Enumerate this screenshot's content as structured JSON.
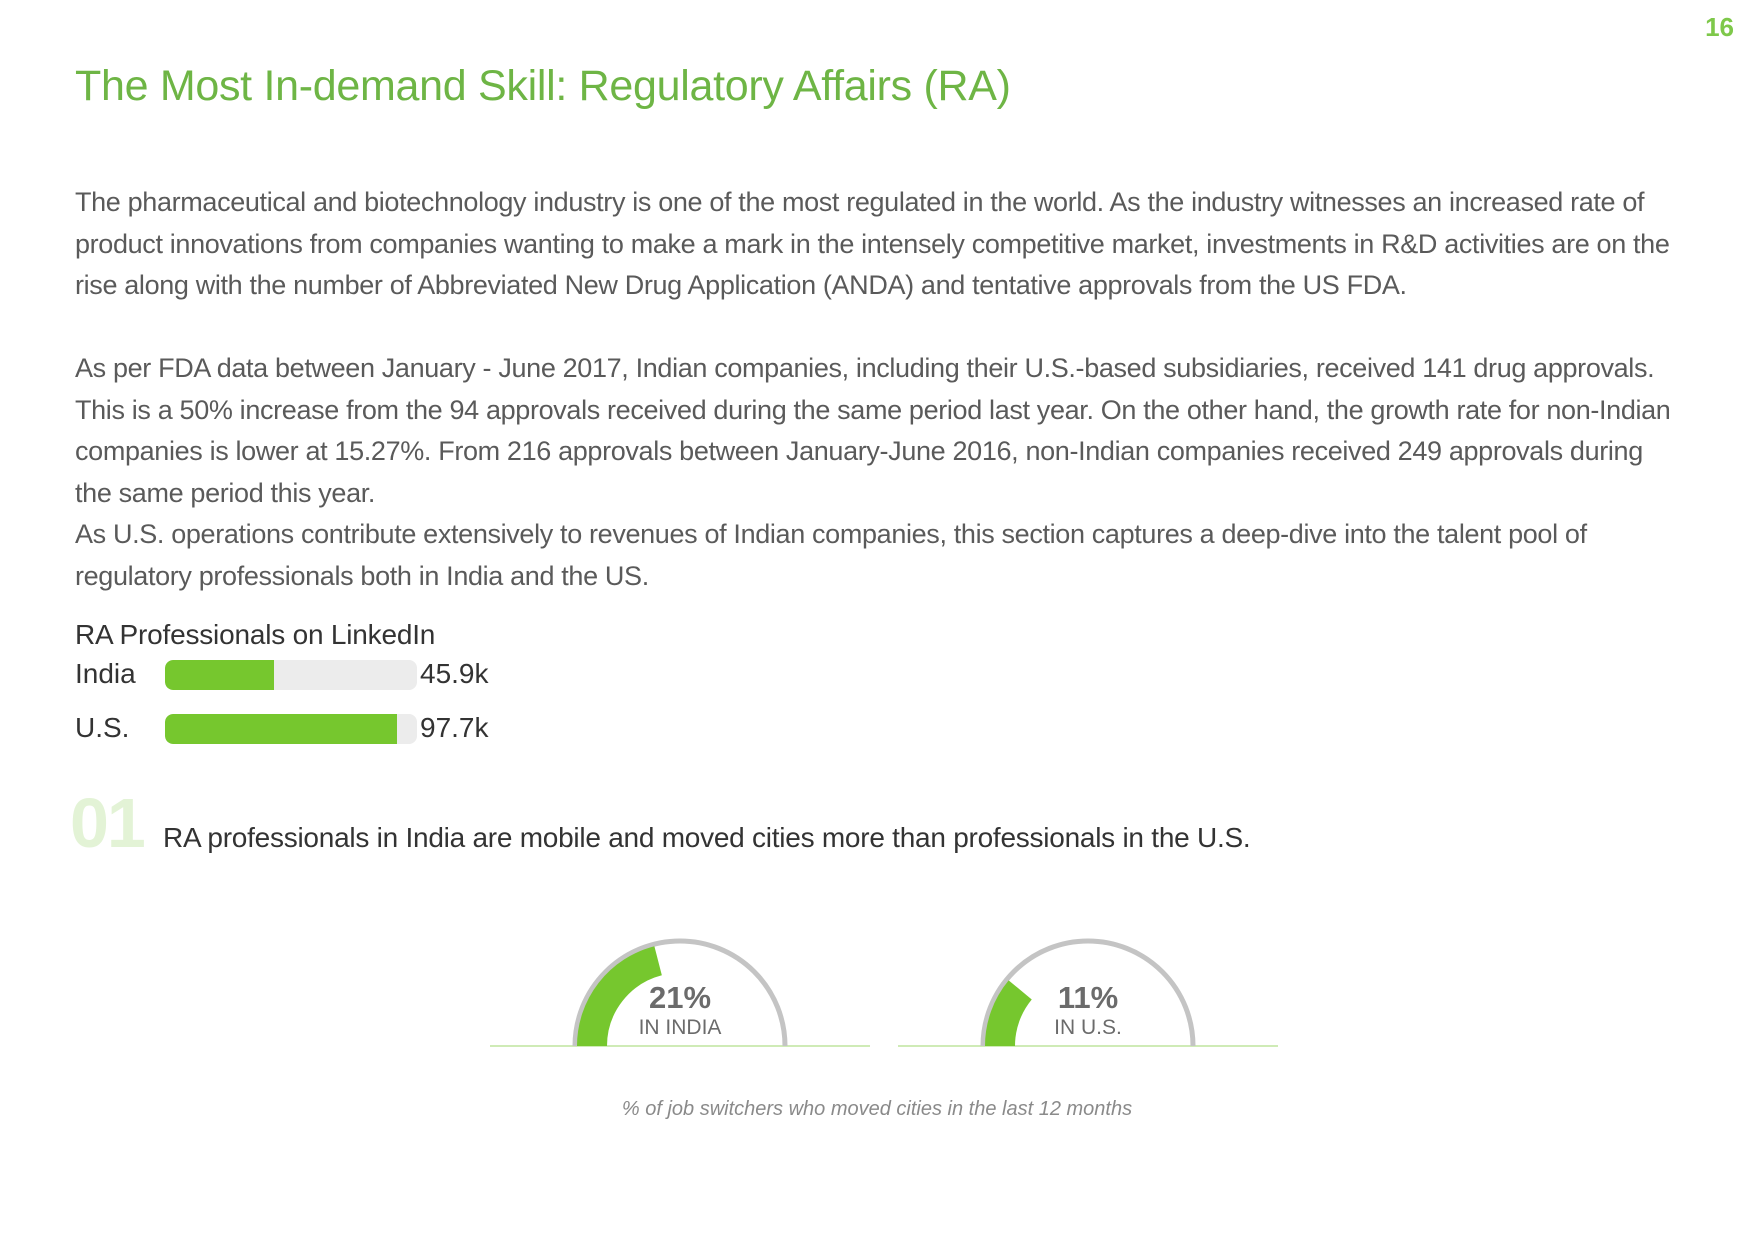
{
  "page_number": "16",
  "title": "The Most In-demand Skill: Regulatory Affairs (RA)",
  "paragraphs": [
    "The pharmaceutical and biotechnology industry is one of the most regulated in the world. As the industry witnesses an increased rate of product innovations from companies wanting to make a mark in the intensely competitive market, investments in R&D activities are on the rise along with the number of Abbreviated New Drug Application (ANDA) and tentative approvals from the US FDA.",
    "As per FDA data between January - June 2017, Indian companies, including their U.S.-based subsidiaries, received 141 drug approvals. This is a 50% increase from the 94 approvals received during the same period last year. On the other hand, the growth rate for non-Indian companies is lower at 15.27%. From 216 approvals between January-June 2016, non-Indian companies received 249 approvals during the same period this year.",
    "As U.S. operations contribute extensively to revenues of Indian companies, this section captures a deep-dive into the talent pool of regulatory professionals both in India and the US."
  ],
  "accent_color": "#76c72e",
  "track_color": "#ececec",
  "gauge_track_color": "#c4c4c4",
  "chart_data": [
    {
      "type": "bar",
      "title": "RA Professionals on LinkedIn",
      "categories": [
        "India",
        "U.S."
      ],
      "values": [
        45.9,
        97.7
      ],
      "value_labels": [
        "45.9k",
        "97.7k"
      ],
      "xlim": [
        0,
        106
      ]
    },
    {
      "type": "pie",
      "title": "",
      "categories": [
        "IN INDIA",
        "IN U.S."
      ],
      "values": [
        21,
        11
      ],
      "value_labels": [
        "21%",
        "11%"
      ],
      "caption": "% of job switchers who moved cities in the last 12 months"
    }
  ],
  "insight": {
    "number": "01",
    "text": "RA professionals in India are mobile and moved cities more than professionals in the U.S."
  }
}
